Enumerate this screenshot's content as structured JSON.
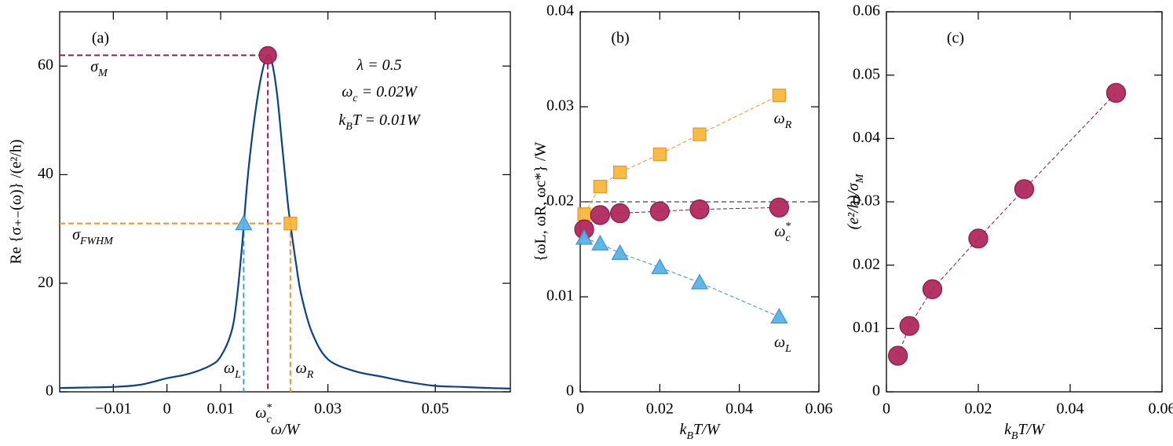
{
  "chart_data": [
    {
      "type": "line",
      "title": "(a)",
      "xlabel": {
        "text": "ω",
        "after": "/W"
      },
      "ylabel": "Re {σ₊₋(ω)} /(e²/h)",
      "x": [
        -0.02,
        -0.015,
        -0.01,
        -0.005,
        0,
        0.004,
        0.008,
        0.01,
        0.012,
        0.013,
        0.014,
        0.015,
        0.016,
        0.017,
        0.018,
        0.0188,
        0.0195,
        0.0205,
        0.0215,
        0.0225,
        0.023,
        0.024,
        0.025,
        0.027,
        0.03,
        0.035,
        0.04,
        0.045,
        0.05,
        0.055,
        0.06,
        0.064
      ],
      "series": [
        {
          "color": "#0d3f8f",
          "values": [
            0.7,
            0.8,
            0.9,
            1.3,
            2.5,
            3.3,
            4.8,
            6.5,
            11,
            17,
            27,
            39,
            48,
            55,
            60,
            62,
            61,
            55,
            45,
            35,
            31,
            24,
            18,
            11,
            6,
            3.8,
            2.8,
            1.8,
            1.1,
            0.9,
            0.7,
            0.6
          ]
        }
      ],
      "peak": {
        "x": 0.0188,
        "y": 62,
        "color": "#a8174f"
      },
      "fwhm": {
        "x": [
          0.0143,
          0.023
        ],
        "y": 31,
        "colors": [
          "#5ab4e8",
          "#f6b93b"
        ],
        "line_colors": [
          "#3aa3e0",
          "#f0922a"
        ]
      },
      "xlim": [
        -0.02,
        0.064
      ],
      "ylim": [
        0,
        70
      ],
      "xticks": [
        {
          "value": -0.01,
          "label": "−0.01"
        },
        0,
        0.01,
        0.03,
        0.05
      ],
      "yticks": [
        0,
        20,
        40,
        60
      ],
      "annotations": [
        {
          "text": "σ",
          "sub": "M",
          "color": "#a0114a"
        },
        {
          "text": "σ",
          "sub": "FWHM",
          "color": "#3aa3e0"
        },
        {
          "text": "ω",
          "sub": "L",
          "color": "#3aa3e0"
        },
        {
          "text": "ω",
          "sub": "R",
          "color": "#f0a030"
        },
        {
          "text": "ω",
          "sub": "c",
          "sup": "*",
          "color": "#a0114a"
        },
        {
          "text": "λ = 0.5",
          "color": "#000000"
        },
        {
          "text": "ω",
          "sub": "c",
          "after": " = 0.02W",
          "color": "#8c8c8c"
        },
        {
          "text": "k",
          "sub": "B",
          "after": "T = 0.01W",
          "color": "#000000"
        }
      ]
    },
    {
      "type": "line",
      "title": "(b)",
      "xlabel": {
        "text": "k",
        "sub": "B",
        "after": "T/W"
      },
      "ylabel": "{ωL, ωR, ωc*} /W",
      "x": [
        0.001,
        0.005,
        0.01,
        0.02,
        0.03,
        0.05
      ],
      "series": [
        {
          "color": "#f6b93b",
          "stroke": "#e8952a",
          "marker": "square",
          "label": {
            "text": "ω",
            "sub": "R",
            "color": "#f0a030"
          },
          "values": [
            0.0187,
            0.0216,
            0.0231,
            0.025,
            0.0271,
            0.0312
          ]
        },
        {
          "color": "#b02a5e",
          "stroke": "#8a1040",
          "marker": "circle",
          "label": {
            "text": "ω",
            "sub": "c",
            "sup": "*",
            "color": "#a0114a"
          },
          "values": [
            0.0171,
            0.0186,
            0.0188,
            0.019,
            0.0192,
            0.0194
          ]
        },
        {
          "color": "#5ab4e8",
          "stroke": "#3a90d0",
          "marker": "triangle",
          "label": {
            "text": "ω",
            "sub": "L",
            "color": "#3aa3e0"
          },
          "values": [
            0.0162,
            0.0156,
            0.0146,
            0.0131,
            0.0115,
            0.0079
          ]
        }
      ],
      "hline": 0.02,
      "xlim": [
        0,
        0.06
      ],
      "ylim": [
        0,
        0.04
      ],
      "xticks": [
        0,
        0.02,
        0.04,
        0.06
      ],
      "yticks": [
        0,
        0.01,
        0.02,
        0.03,
        0.04
      ]
    },
    {
      "type": "line",
      "title": "(c)",
      "xlabel": {
        "text": "k",
        "sub": "B",
        "after": "T/W"
      },
      "ylabel": {
        "text": "(e²/h)/σ",
        "sub": "M"
      },
      "x": [
        0.0025,
        0.005,
        0.01,
        0.02,
        0.03,
        0.05
      ],
      "series": [
        {
          "color": "#b02a5e",
          "stroke": "#8a1040",
          "marker": "circle",
          "values": [
            0.0057,
            0.0104,
            0.0162,
            0.0242,
            0.032,
            0.0472
          ]
        }
      ],
      "xlim": [
        0,
        0.06
      ],
      "ylim": [
        0,
        0.06
      ],
      "xticks": [
        0,
        0.02,
        0.04,
        0.06
      ],
      "yticks": [
        0,
        0.01,
        0.02,
        0.03,
        0.04,
        0.05,
        0.06
      ]
    }
  ]
}
